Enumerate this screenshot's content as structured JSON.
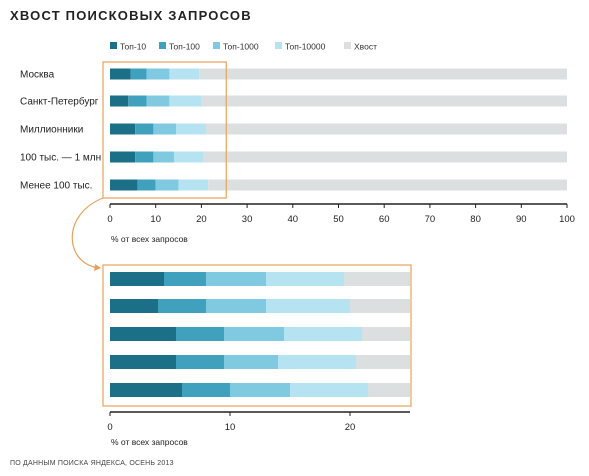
{
  "chart_data": {
    "type": "bar",
    "title": "ХВОСТ ПОИСКОВЫХ ЗАПРОСОВ",
    "source": "ПО ДАННЫМ ПОИСКА ЯНДЕКСА, ОСЕНЬ 2013",
    "categories": [
      "Москва",
      "Санкт-Петербург",
      "Миллионники",
      "100 тыс. — 1 млн",
      "Менее 100 тыс."
    ],
    "series": [
      {
        "name": "Топ-10",
        "color": "#1b6f86",
        "values": [
          4.5,
          4.0,
          5.5,
          5.5,
          6.0
        ]
      },
      {
        "name": "Топ-100",
        "color": "#3fa1be",
        "values": [
          3.5,
          4.0,
          4.0,
          4.0,
          4.0
        ]
      },
      {
        "name": "Топ-1000",
        "color": "#7fcae0",
        "values": [
          5.0,
          5.0,
          5.0,
          4.5,
          5.0
        ]
      },
      {
        "name": "Топ-10000",
        "color": "#b6e3f2",
        "values": [
          6.5,
          7.0,
          6.5,
          6.5,
          6.5
        ]
      },
      {
        "name": "Хвост",
        "color": "#dcdfe0",
        "values": [
          80.5,
          80.0,
          79.0,
          79.5,
          78.5
        ]
      }
    ],
    "stacked": true,
    "legend_position": "top",
    "main_axis": {
      "xlim": [
        0,
        100
      ],
      "ticks": [
        0,
        10,
        20,
        30,
        40,
        50,
        60,
        70,
        80,
        90,
        100
      ],
      "xlabel": "% от всех запросов"
    },
    "zoom_axis": {
      "xlim": [
        0,
        25
      ],
      "ticks": [
        0,
        10,
        20
      ],
      "xlabel": "% от всех запросов"
    },
    "highlight_color": "#e8a25a"
  }
}
